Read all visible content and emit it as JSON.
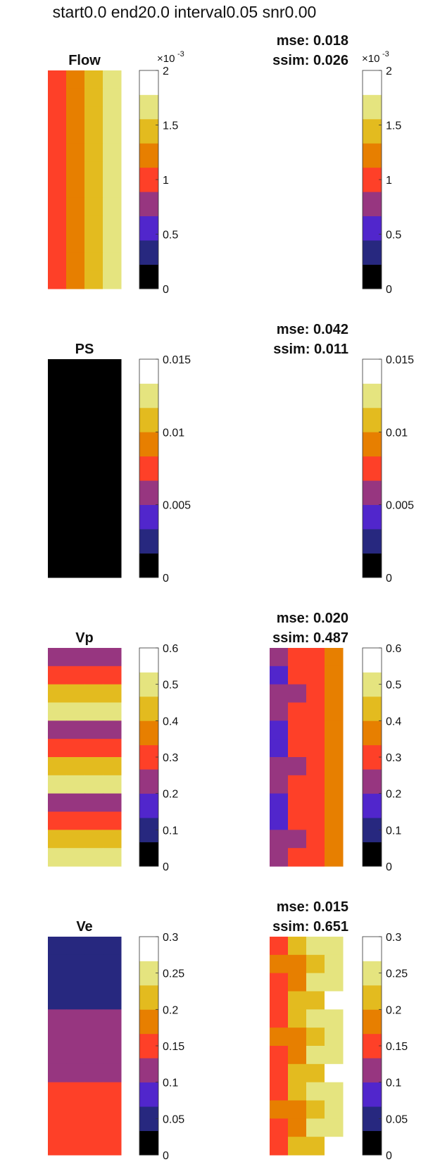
{
  "figure_title": "start0.0 end20.0 interval0.05 snr0.00",
  "colormap": [
    "#000000",
    "#27287f",
    "#5126cc",
    "#973680",
    "#fe4028",
    "#e77f00",
    "#e3bb1f",
    "#e5e47f",
    "#ffffff"
  ],
  "chart_data": [
    {
      "type": "heatmap",
      "title": "Flow",
      "mse_label": "mse: 0.018",
      "ssim_label": "ssim: 0.026",
      "clim": [
        0,
        0.002
      ],
      "ticks": [
        0,
        0.0005,
        0.001,
        0.0015,
        0.002
      ],
      "tick_labels": [
        "0",
        "0.5",
        "1",
        "1.5",
        "2"
      ],
      "exponent": "-3",
      "truth": [
        [
          4,
          5,
          6,
          7
        ],
        [
          4,
          5,
          6,
          7
        ],
        [
          4,
          5,
          6,
          7
        ],
        [
          4,
          5,
          6,
          7
        ],
        [
          4,
          5,
          6,
          7
        ],
        [
          4,
          5,
          6,
          7
        ],
        [
          4,
          5,
          6,
          7
        ],
        [
          4,
          5,
          6,
          7
        ],
        [
          4,
          5,
          6,
          7
        ],
        [
          4,
          5,
          6,
          7
        ],
        [
          4,
          5,
          6,
          7
        ],
        [
          4,
          5,
          6,
          7
        ]
      ],
      "estimate": [
        [
          8,
          8,
          8,
          8
        ],
        [
          8,
          8,
          8,
          8
        ],
        [
          8,
          8,
          8,
          8
        ],
        [
          8,
          8,
          8,
          8
        ],
        [
          8,
          8,
          8,
          8
        ],
        [
          8,
          8,
          8,
          8
        ],
        [
          8,
          8,
          8,
          8
        ],
        [
          8,
          8,
          8,
          8
        ],
        [
          8,
          8,
          8,
          8
        ],
        [
          8,
          8,
          8,
          8
        ],
        [
          8,
          8,
          8,
          8
        ],
        [
          8,
          8,
          8,
          8
        ]
      ]
    },
    {
      "type": "heatmap",
      "title": "PS",
      "mse_label": "mse: 0.042",
      "ssim_label": "ssim: 0.011",
      "clim": [
        0,
        0.015
      ],
      "ticks": [
        0,
        0.005,
        0.01,
        0.015
      ],
      "tick_labels": [
        "0",
        "0.005",
        "0.01",
        "0.015"
      ],
      "exponent": "",
      "truth": [
        [
          0,
          0,
          0,
          0
        ],
        [
          0,
          0,
          0,
          0
        ],
        [
          0,
          0,
          0,
          0
        ],
        [
          0,
          0,
          0,
          0
        ],
        [
          0,
          0,
          0,
          0
        ],
        [
          0,
          0,
          0,
          0
        ],
        [
          0,
          0,
          0,
          0
        ],
        [
          0,
          0,
          0,
          0
        ],
        [
          0,
          0,
          0,
          0
        ],
        [
          0,
          0,
          0,
          0
        ],
        [
          0,
          0,
          0,
          0
        ],
        [
          0,
          0,
          0,
          0
        ]
      ],
      "estimate": [
        [
          8,
          8,
          8,
          8
        ],
        [
          8,
          8,
          8,
          8
        ],
        [
          8,
          8,
          8,
          8
        ],
        [
          8,
          8,
          8,
          8
        ],
        [
          8,
          8,
          8,
          8
        ],
        [
          8,
          8,
          8,
          8
        ],
        [
          8,
          8,
          8,
          8
        ],
        [
          8,
          8,
          8,
          8
        ],
        [
          8,
          8,
          8,
          8
        ],
        [
          8,
          8,
          8,
          8
        ],
        [
          8,
          8,
          8,
          8
        ],
        [
          8,
          8,
          8,
          8
        ]
      ]
    },
    {
      "type": "heatmap",
      "title": "Vp",
      "mse_label": "mse: 0.020",
      "ssim_label": "ssim: 0.487",
      "clim": [
        0,
        0.6
      ],
      "ticks": [
        0,
        0.1,
        0.2,
        0.3,
        0.4,
        0.5,
        0.6
      ],
      "tick_labels": [
        "0",
        "0.1",
        "0.2",
        "0.3",
        "0.4",
        "0.5",
        "0.6"
      ],
      "exponent": "",
      "truth": [
        [
          3,
          3,
          3,
          3
        ],
        [
          4,
          4,
          4,
          4
        ],
        [
          6,
          6,
          6,
          6
        ],
        [
          7,
          7,
          7,
          7
        ],
        [
          3,
          3,
          3,
          3
        ],
        [
          4,
          4,
          4,
          4
        ],
        [
          6,
          6,
          6,
          6
        ],
        [
          7,
          7,
          7,
          7
        ],
        [
          3,
          3,
          3,
          3
        ],
        [
          4,
          4,
          4,
          4
        ],
        [
          6,
          6,
          6,
          6
        ],
        [
          7,
          7,
          7,
          7
        ]
      ],
      "estimate": [
        [
          3,
          4,
          4,
          5
        ],
        [
          2,
          4,
          4,
          5
        ],
        [
          3,
          3,
          4,
          5
        ],
        [
          3,
          4,
          4,
          5
        ],
        [
          2,
          4,
          4,
          5
        ],
        [
          2,
          4,
          4,
          5
        ],
        [
          3,
          3,
          4,
          5
        ],
        [
          3,
          4,
          4,
          5
        ],
        [
          2,
          4,
          4,
          5
        ],
        [
          2,
          4,
          4,
          5
        ],
        [
          3,
          3,
          4,
          5
        ],
        [
          3,
          4,
          4,
          5
        ]
      ]
    },
    {
      "type": "heatmap",
      "title": "Ve",
      "mse_label": "mse: 0.015",
      "ssim_label": "ssim: 0.651",
      "clim": [
        0,
        0.3
      ],
      "ticks": [
        0,
        0.05,
        0.1,
        0.15,
        0.2,
        0.25,
        0.3
      ],
      "tick_labels": [
        "0",
        "0.05",
        "0.1",
        "0.15",
        "0.2",
        "0.25",
        "0.3"
      ],
      "exponent": "",
      "truth": [
        [
          1,
          1,
          1,
          1
        ],
        [
          1,
          1,
          1,
          1
        ],
        [
          1,
          1,
          1,
          1
        ],
        [
          1,
          1,
          1,
          1
        ],
        [
          3,
          3,
          3,
          3
        ],
        [
          3,
          3,
          3,
          3
        ],
        [
          3,
          3,
          3,
          3
        ],
        [
          3,
          3,
          3,
          3
        ],
        [
          4,
          4,
          4,
          4
        ],
        [
          4,
          4,
          4,
          4
        ],
        [
          4,
          4,
          4,
          4
        ],
        [
          4,
          4,
          4,
          4
        ]
      ],
      "estimate": [
        [
          4,
          6,
          7,
          7
        ],
        [
          5,
          5,
          6,
          7
        ],
        [
          4,
          5,
          7,
          7
        ],
        [
          4,
          6,
          6,
          8
        ],
        [
          4,
          6,
          7,
          7
        ],
        [
          5,
          5,
          6,
          7
        ],
        [
          4,
          5,
          7,
          7
        ],
        [
          4,
          6,
          6,
          8
        ],
        [
          4,
          6,
          7,
          7
        ],
        [
          5,
          5,
          6,
          7
        ],
        [
          4,
          5,
          7,
          7
        ],
        [
          4,
          6,
          6,
          8
        ]
      ]
    }
  ]
}
